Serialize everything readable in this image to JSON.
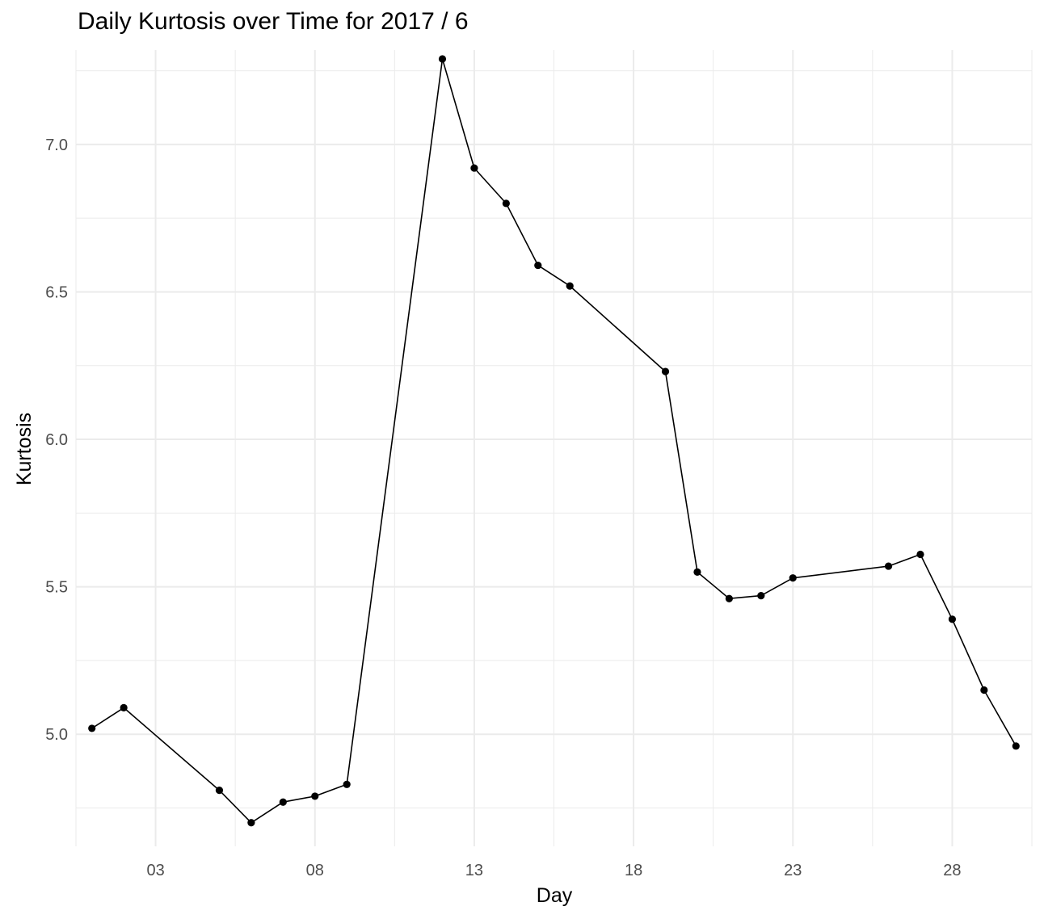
{
  "chart_data": {
    "type": "line",
    "title": "Daily Kurtosis over Time for 2017 / 6",
    "xlabel": "Day",
    "ylabel": "Kurtosis",
    "x_tick_labels": [
      "03",
      "08",
      "13",
      "18",
      "23",
      "28"
    ],
    "y_tick_labels": [
      "5.0",
      "5.5",
      "6.0",
      "6.5",
      "7.0"
    ],
    "xlim": [
      0.5,
      30.5
    ],
    "ylim": [
      4.62,
      7.32
    ],
    "grid": true,
    "x": [
      1,
      2,
      5,
      6,
      7,
      8,
      9,
      12,
      13,
      14,
      15,
      16,
      19,
      20,
      21,
      22,
      23,
      26,
      27,
      28,
      29,
      30
    ],
    "y": [
      5.02,
      5.09,
      4.81,
      4.7,
      4.77,
      4.79,
      4.83,
      7.29,
      6.92,
      6.8,
      6.59,
      6.52,
      6.23,
      5.55,
      5.46,
      5.47,
      5.53,
      5.57,
      5.61,
      5.39,
      5.15,
      4.96
    ],
    "line_color": "#000000",
    "grid_color": "#ebebeb"
  }
}
